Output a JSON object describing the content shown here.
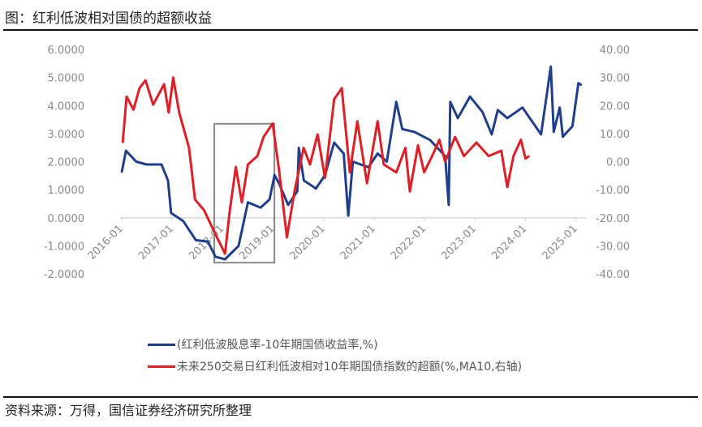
{
  "title": "图：红利低波相对国债的超额收益",
  "source": "资料来源：万得，国信证券经济研究所整理",
  "chart_data": {
    "type": "line",
    "title": "图：红利低波相对国债的超额收益",
    "x_ticks": [
      "2016-01",
      "2017-01",
      "2018-01",
      "2019-01",
      "2020-01",
      "2021-01",
      "2022-01",
      "2023-01",
      "2024-01",
      "2025-01"
    ],
    "y_left": {
      "lim": [
        -2,
        6
      ],
      "ticks": [
        "-2.0000",
        "-1.0000",
        "0.0000",
        "1.0000",
        "2.0000",
        "3.0000",
        "4.0000",
        "5.0000",
        "6.0000"
      ]
    },
    "y_right": {
      "lim": [
        -40,
        40
      ],
      "ticks": [
        "-40.00",
        "-30.00",
        "-20.00",
        "-10.00",
        "0.00",
        "10.00",
        "20.00",
        "30.00",
        "40.00"
      ]
    },
    "grid": false,
    "legend_position": "bottom",
    "series": [
      {
        "name": "(红利低波股息率-10年期国债收益率,%)",
        "axis": "left",
        "color": "#1f3f8c",
        "points": [
          [
            "2016-01-01",
            1.62
          ],
          [
            "2016-02-01",
            2.39
          ],
          [
            "2016-04-15",
            2.0
          ],
          [
            "2016-06-28",
            1.9
          ],
          [
            "2016-10-15",
            1.9
          ],
          [
            "2016-12-01",
            1.33
          ],
          [
            "2016-12-23",
            0.17
          ],
          [
            "2017-03-20",
            -0.12
          ],
          [
            "2017-06-20",
            -0.8
          ],
          [
            "2017-09-15",
            -0.85
          ],
          [
            "2017-11-10",
            -1.39
          ],
          [
            "2018-01-18",
            -1.48
          ],
          [
            "2018-04-25",
            -1.0
          ],
          [
            "2018-07-01",
            0.55
          ],
          [
            "2018-10-01",
            0.36
          ],
          [
            "2018-12-05",
            0.65
          ],
          [
            "2019-01-11",
            1.52
          ],
          [
            "2019-02-13",
            1.23
          ],
          [
            "2019-04-18",
            0.46
          ],
          [
            "2019-06-23",
            0.94
          ],
          [
            "2019-07-04",
            2.49
          ],
          [
            "2019-08-10",
            1.33
          ],
          [
            "2019-11-06",
            1.04
          ],
          [
            "2020-01-11",
            1.52
          ],
          [
            "2020-03-16",
            2.68
          ],
          [
            "2020-05-24",
            2.29
          ],
          [
            "2020-06-27",
            0.07
          ],
          [
            "2020-07-30",
            2.0
          ],
          [
            "2020-11-21",
            1.8
          ],
          [
            "2021-01-26",
            2.29
          ],
          [
            "2021-04-01",
            2.0
          ],
          [
            "2021-06-09",
            4.13
          ],
          [
            "2021-07-22",
            3.16
          ],
          [
            "2021-10-19",
            3.06
          ],
          [
            "2022-02-10",
            2.77
          ],
          [
            "2022-05-28",
            2.2
          ],
          [
            "2022-06-23",
            0.46
          ],
          [
            "2022-07-04",
            4.13
          ],
          [
            "2022-08-28",
            3.55
          ],
          [
            "2022-11-25",
            4.32
          ],
          [
            "2023-02-24",
            3.77
          ],
          [
            "2023-04-30",
            2.97
          ],
          [
            "2023-06-13",
            3.84
          ],
          [
            "2023-08-21",
            3.55
          ],
          [
            "2023-12-09",
            3.93
          ],
          [
            "2024-02-17",
            3.44
          ],
          [
            "2024-04-22",
            2.97
          ],
          [
            "2024-07-01",
            5.39
          ],
          [
            "2024-07-22",
            3.06
          ],
          [
            "2024-09-05",
            3.93
          ],
          [
            "2024-09-27",
            2.89
          ],
          [
            "2024-12-05",
            3.26
          ],
          [
            "2025-01-18",
            4.8
          ],
          [
            "2025-02-10",
            4.73
          ]
        ]
      },
      {
        "name": "未来250交易日红利低波相对10年期国债指数的超额(%,MA10,右轴)",
        "axis": "right",
        "color": "#e01e26",
        "points": [
          [
            "2016-01-08",
            6.8
          ],
          [
            "2016-02-06",
            23.2
          ],
          [
            "2016-03-25",
            18.5
          ],
          [
            "2016-05-08",
            26.2
          ],
          [
            "2016-06-21",
            29
          ],
          [
            "2016-08-15",
            20.3
          ],
          [
            "2016-11-03",
            27.6
          ],
          [
            "2016-12-06",
            17.5
          ],
          [
            "2017-01-08",
            30
          ],
          [
            "2017-02-21",
            17.5
          ],
          [
            "2017-05-01",
            4.9
          ],
          [
            "2017-06-14",
            -13.5
          ],
          [
            "2017-08-18",
            -17.3
          ],
          [
            "2017-11-10",
            -26
          ],
          [
            "2018-01-18",
            -32.8
          ],
          [
            "2018-02-20",
            -18.2
          ],
          [
            "2018-04-05",
            -1.9
          ],
          [
            "2018-05-18",
            -14.5
          ],
          [
            "2018-07-01",
            -1.0
          ],
          [
            "2018-09-08",
            2.0
          ],
          [
            "2018-10-23",
            8.8
          ],
          [
            "2018-12-28",
            13.6
          ],
          [
            "2019-02-13",
            -2.9
          ],
          [
            "2019-04-09",
            -27
          ],
          [
            "2019-06-03",
            -10.6
          ],
          [
            "2019-08-08",
            4.9
          ],
          [
            "2019-09-24",
            -1.0
          ],
          [
            "2019-11-18",
            9.7
          ],
          [
            "2020-01-11",
            -5.8
          ],
          [
            "2020-03-16",
            22.2
          ],
          [
            "2020-05-10",
            26.2
          ],
          [
            "2020-07-08",
            -3.8
          ],
          [
            "2020-09-01",
            14.4
          ],
          [
            "2020-11-10",
            -7.7
          ],
          [
            "2021-01-26",
            14.4
          ],
          [
            "2021-03-10",
            -1.0
          ],
          [
            "2021-06-09",
            -3.8
          ],
          [
            "2021-08-14",
            4.9
          ],
          [
            "2021-09-16",
            -10.6
          ],
          [
            "2021-11-14",
            5.8
          ],
          [
            "2021-12-28",
            -3.8
          ],
          [
            "2022-03-03",
            2.9
          ],
          [
            "2022-04-16",
            7.8
          ],
          [
            "2022-05-28",
            0.0
          ],
          [
            "2022-08-08",
            8.8
          ],
          [
            "2022-10-12",
            2.0
          ],
          [
            "2023-01-11",
            6.8
          ],
          [
            "2023-04-08",
            2.0
          ],
          [
            "2023-07-08",
            3.9
          ],
          [
            "2023-08-21",
            -9.1
          ],
          [
            "2023-10-05",
            2.0
          ],
          [
            "2023-11-28",
            7.8
          ],
          [
            "2024-01-01",
            1.1
          ],
          [
            "2024-01-26",
            2.0
          ]
        ]
      }
    ],
    "annotations": [
      {
        "type": "box",
        "color": "#888888",
        "x_range": [
          "2017-11-01",
          "2019-01-10"
        ],
        "y_left_range": [
          -1.6,
          3.35
        ]
      }
    ]
  }
}
